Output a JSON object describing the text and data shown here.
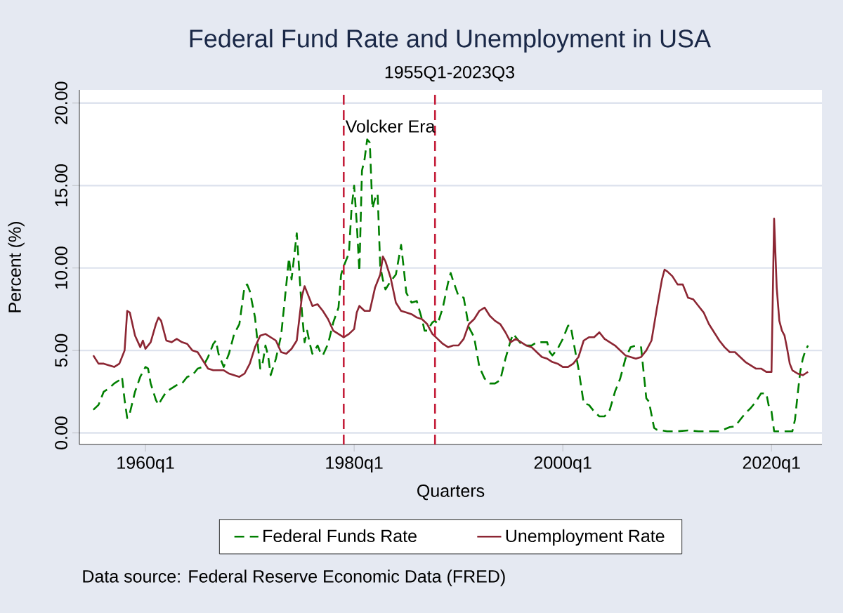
{
  "chart_data": {
    "type": "line",
    "title": "Federal Fund Rate and Unemployment in USA",
    "subtitle": "1955Q1-2023Q3",
    "xlabel": "Quarters",
    "ylabel": "Percent (%)",
    "xlim": [
      "1953-09",
      "2024-11"
    ],
    "ylim": [
      -0.7,
      20.8
    ],
    "xticks": [
      {
        "value": "1960-01",
        "label": "1960q1"
      },
      {
        "value": "1980-01",
        "label": "1980q1"
      },
      {
        "value": "2000-01",
        "label": "2000q1"
      },
      {
        "value": "2020-01",
        "label": "2020q1"
      }
    ],
    "yticks": [
      {
        "value": 0,
        "label": "0.00"
      },
      {
        "value": 5,
        "label": "5.00"
      },
      {
        "value": 10,
        "label": "10.00"
      },
      {
        "value": 15,
        "label": "15.00"
      },
      {
        "value": 20,
        "label": "20.00"
      }
    ],
    "grid": "y",
    "legend": "bottom",
    "series": [
      {
        "name": "Federal Funds Rate",
        "color": "#007f00",
        "line_style": "dashed",
        "x": [
          "1955-01",
          "1955-07",
          "1956-01",
          "1956-07",
          "1957-01",
          "1957-07",
          "1957-10",
          "1958-01",
          "1958-04",
          "1958-07",
          "1959-01",
          "1959-07",
          "1960-01",
          "1960-04",
          "1960-07",
          "1961-01",
          "1961-04",
          "1961-07",
          "1962-01",
          "1962-07",
          "1963-01",
          "1963-07",
          "1964-01",
          "1964-07",
          "1965-01",
          "1965-07",
          "1966-01",
          "1966-07",
          "1966-10",
          "1967-01",
          "1967-07",
          "1968-01",
          "1968-07",
          "1969-01",
          "1969-07",
          "1969-10",
          "1970-01",
          "1970-07",
          "1971-01",
          "1971-04",
          "1971-07",
          "1971-10",
          "1972-01",
          "1972-07",
          "1973-01",
          "1973-07",
          "1973-10",
          "1974-01",
          "1974-07",
          "1975-01",
          "1975-04",
          "1975-07",
          "1975-10",
          "1976-01",
          "1976-07",
          "1976-10",
          "1977-01",
          "1977-07",
          "1978-01",
          "1978-07",
          "1978-10",
          "1979-01",
          "1979-07",
          "1979-10",
          "1980-01",
          "1980-04",
          "1980-07",
          "1980-10",
          "1981-01",
          "1981-04",
          "1981-07",
          "1981-10",
          "1982-01",
          "1982-04",
          "1982-07",
          "1982-10",
          "1983-01",
          "1983-07",
          "1984-01",
          "1984-07",
          "1984-10",
          "1985-01",
          "1985-07",
          "1986-01",
          "1986-07",
          "1986-10",
          "1987-01",
          "1987-07",
          "1987-10",
          "1988-01",
          "1988-07",
          "1989-01",
          "1989-04",
          "1989-07",
          "1990-01",
          "1990-07",
          "1991-01",
          "1991-07",
          "1992-01",
          "1992-07",
          "1993-01",
          "1993-07",
          "1994-01",
          "1994-07",
          "1995-01",
          "1995-04",
          "1995-07",
          "1996-01",
          "1996-07",
          "1997-01",
          "1997-07",
          "1998-01",
          "1998-07",
          "1998-10",
          "1999-01",
          "1999-07",
          "2000-01",
          "2000-07",
          "2000-10",
          "2001-01",
          "2001-07",
          "2002-01",
          "2002-07",
          "2003-01",
          "2003-07",
          "2004-01",
          "2004-07",
          "2005-01",
          "2005-07",
          "2006-01",
          "2006-07",
          "2007-01",
          "2007-07",
          "2008-01",
          "2008-04",
          "2008-10",
          "2009-01",
          "2010-01",
          "2011-01",
          "2012-01",
          "2013-01",
          "2014-01",
          "2015-01",
          "2016-01",
          "2016-07",
          "2017-01",
          "2017-07",
          "2018-01",
          "2018-07",
          "2019-01",
          "2019-07",
          "2019-10",
          "2020-01",
          "2020-04",
          "2020-07",
          "2021-01",
          "2022-01",
          "2022-04",
          "2022-07",
          "2022-10",
          "2023-01",
          "2023-04",
          "2023-07"
        ],
        "values": [
          1.4,
          1.7,
          2.5,
          2.7,
          3.0,
          3.2,
          3.4,
          2.0,
          0.9,
          1.2,
          2.5,
          3.4,
          4.0,
          3.9,
          3.0,
          2.0,
          1.7,
          2.0,
          2.5,
          2.7,
          2.9,
          3.0,
          3.4,
          3.5,
          3.9,
          4.0,
          4.6,
          5.4,
          5.6,
          4.8,
          4.0,
          4.8,
          6.0,
          6.6,
          8.9,
          9.0,
          8.6,
          7.0,
          3.9,
          4.3,
          5.3,
          4.7,
          3.5,
          4.5,
          5.9,
          9.0,
          10.6,
          9.3,
          12.1,
          7.3,
          5.5,
          6.2,
          5.4,
          4.8,
          5.3,
          4.9,
          4.7,
          5.4,
          6.7,
          7.6,
          9.6,
          10.1,
          10.9,
          13.6,
          15.0,
          12.7,
          9.8,
          15.9,
          16.6,
          17.8,
          17.6,
          13.6,
          14.2,
          14.5,
          10.1,
          9.3,
          8.7,
          9.2,
          9.6,
          11.4,
          10.0,
          8.5,
          7.9,
          8.0,
          6.9,
          6.2,
          6.2,
          6.7,
          6.8,
          6.6,
          7.6,
          9.1,
          9.7,
          9.2,
          8.3,
          8.2,
          6.4,
          5.8,
          4.0,
          3.3,
          3.0,
          3.0,
          3.2,
          4.5,
          5.6,
          6.0,
          5.8,
          5.4,
          5.3,
          5.3,
          5.5,
          5.5,
          5.5,
          4.9,
          4.7,
          5.1,
          5.7,
          6.5,
          6.5,
          5.6,
          3.9,
          1.8,
          1.7,
          1.3,
          1.0,
          1.0,
          1.4,
          2.5,
          3.3,
          4.5,
          5.2,
          5.3,
          5.2,
          2.1,
          1.9,
          0.3,
          0.2,
          0.1,
          0.1,
          0.15,
          0.1,
          0.1,
          0.1,
          0.35,
          0.4,
          0.8,
          1.2,
          1.5,
          1.9,
          2.4,
          2.4,
          1.6,
          1.3,
          0.1,
          0.1,
          0.1,
          0.1,
          0.8,
          2.3,
          3.7,
          4.5,
          5.0,
          5.3
        ]
      },
      {
        "name": "Unemployment Rate",
        "color": "#8c2633",
        "line_style": "solid",
        "x": [
          "1955-01",
          "1955-07",
          "1956-01",
          "1956-07",
          "1957-01",
          "1957-07",
          "1958-01",
          "1958-04",
          "1958-07",
          "1959-01",
          "1959-07",
          "1959-10",
          "1960-01",
          "1960-07",
          "1961-01",
          "1961-04",
          "1961-07",
          "1962-01",
          "1962-07",
          "1963-01",
          "1963-07",
          "1964-01",
          "1964-07",
          "1965-01",
          "1965-07",
          "1966-01",
          "1966-07",
          "1967-01",
          "1967-07",
          "1968-01",
          "1968-07",
          "1969-01",
          "1969-07",
          "1970-01",
          "1970-07",
          "1971-01",
          "1971-07",
          "1972-01",
          "1972-07",
          "1973-01",
          "1973-07",
          "1974-01",
          "1974-07",
          "1975-01",
          "1975-04",
          "1975-07",
          "1976-01",
          "1976-07",
          "1977-01",
          "1977-07",
          "1978-01",
          "1978-07",
          "1979-01",
          "1979-07",
          "1980-01",
          "1980-04",
          "1980-07",
          "1981-01",
          "1981-07",
          "1982-01",
          "1982-07",
          "1982-10",
          "1983-01",
          "1983-07",
          "1984-01",
          "1984-07",
          "1985-01",
          "1985-07",
          "1986-01",
          "1986-07",
          "1987-01",
          "1987-07",
          "1988-01",
          "1988-07",
          "1989-01",
          "1989-07",
          "1990-01",
          "1990-07",
          "1991-01",
          "1991-07",
          "1992-01",
          "1992-07",
          "1993-01",
          "1993-07",
          "1994-01",
          "1994-07",
          "1995-01",
          "1995-07",
          "1996-01",
          "1996-07",
          "1997-01",
          "1997-07",
          "1998-01",
          "1998-07",
          "1999-01",
          "1999-07",
          "2000-01",
          "2000-07",
          "2001-01",
          "2001-07",
          "2002-01",
          "2002-07",
          "2003-01",
          "2003-07",
          "2004-01",
          "2004-07",
          "2005-01",
          "2005-07",
          "2006-01",
          "2006-07",
          "2007-01",
          "2007-07",
          "2008-01",
          "2008-07",
          "2009-01",
          "2009-07",
          "2009-10",
          "2010-01",
          "2010-07",
          "2011-01",
          "2011-07",
          "2012-01",
          "2012-07",
          "2013-01",
          "2013-07",
          "2014-01",
          "2014-07",
          "2015-01",
          "2015-07",
          "2016-01",
          "2016-07",
          "2017-01",
          "2017-07",
          "2018-01",
          "2018-07",
          "2019-01",
          "2019-07",
          "2020-01",
          "2020-04",
          "2020-07",
          "2020-10",
          "2021-01",
          "2021-04",
          "2021-07",
          "2021-10",
          "2022-01",
          "2022-07",
          "2023-01",
          "2023-04",
          "2023-07"
        ],
        "values": [
          4.7,
          4.2,
          4.2,
          4.1,
          4.0,
          4.2,
          5.0,
          7.4,
          7.3,
          5.9,
          5.2,
          5.6,
          5.1,
          5.5,
          6.6,
          7.0,
          6.8,
          5.6,
          5.5,
          5.7,
          5.5,
          5.4,
          5.0,
          4.9,
          4.4,
          3.9,
          3.8,
          3.8,
          3.8,
          3.6,
          3.5,
          3.4,
          3.6,
          4.2,
          5.2,
          5.9,
          6.0,
          5.8,
          5.6,
          4.9,
          4.8,
          5.1,
          5.6,
          8.3,
          8.9,
          8.5,
          7.7,
          7.8,
          7.4,
          6.9,
          6.2,
          6.0,
          5.8,
          6.0,
          6.3,
          7.3,
          7.7,
          7.4,
          7.4,
          8.8,
          9.6,
          10.7,
          10.4,
          9.4,
          7.9,
          7.4,
          7.3,
          7.2,
          7.0,
          6.9,
          6.6,
          6.0,
          5.7,
          5.4,
          5.2,
          5.3,
          5.3,
          5.7,
          6.6,
          6.9,
          7.4,
          7.6,
          7.1,
          6.8,
          6.6,
          6.1,
          5.5,
          5.7,
          5.5,
          5.3,
          5.2,
          4.9,
          4.6,
          4.5,
          4.3,
          4.2,
          4.0,
          4.0,
          4.2,
          4.6,
          5.6,
          5.8,
          5.8,
          6.1,
          5.7,
          5.5,
          5.3,
          5.0,
          4.7,
          4.6,
          4.5,
          4.6,
          5.0,
          5.6,
          7.5,
          9.3,
          9.9,
          9.8,
          9.5,
          9.0,
          9.0,
          8.2,
          8.1,
          7.7,
          7.3,
          6.6,
          6.1,
          5.6,
          5.2,
          4.9,
          4.9,
          4.6,
          4.3,
          4.1,
          3.9,
          3.9,
          3.7,
          3.7,
          13.0,
          8.8,
          6.8,
          6.2,
          5.9,
          5.1,
          4.2,
          3.8,
          3.6,
          3.5,
          3.6,
          3.7
        ]
      }
    ],
    "ref_lines": [
      {
        "axis": "x",
        "value": "1979-01",
        "color": "#c41e3a",
        "line_style": "dashed"
      },
      {
        "axis": "x",
        "value": "1987-10",
        "color": "#c41e3a",
        "line_style": "dashed"
      }
    ],
    "annotations": [
      {
        "text": "Volcker Era",
        "x": "1979-01",
        "y": 18.6
      },
      "Data source: Federal Reserve Economic Data (FRED)"
    ]
  }
}
